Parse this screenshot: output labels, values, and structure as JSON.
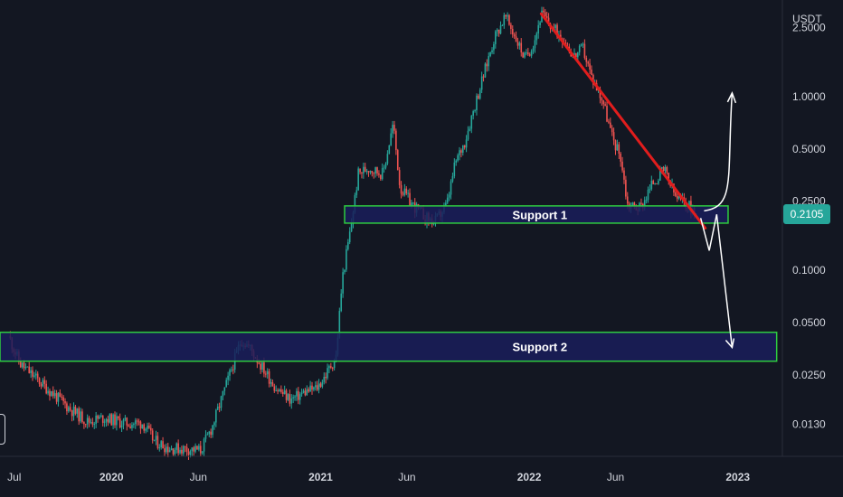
{
  "chart_data": {
    "type": "candlestick",
    "currency": "USDT",
    "y_scale": "log",
    "ylim": [
      0.0085,
      3.6
    ],
    "x_range": [
      "2019-06-20",
      "2023-03-20"
    ],
    "y_ticks": [
      {
        "value": 2.5,
        "label": "2.5000"
      },
      {
        "value": 1.0,
        "label": "1.0000"
      },
      {
        "value": 0.5,
        "label": "0.5000"
      },
      {
        "value": 0.25,
        "label": "0.2500"
      },
      {
        "value": 0.1,
        "label": "0.1000"
      },
      {
        "value": 0.05,
        "label": "0.0500"
      },
      {
        "value": 0.025,
        "label": "0.0250"
      },
      {
        "value": 0.013,
        "label": "0.0130"
      }
    ],
    "x_ticks": [
      {
        "date": "2019-07-15",
        "label": "Jul",
        "bold": false
      },
      {
        "date": "2020-01-01",
        "label": "2020",
        "bold": true
      },
      {
        "date": "2020-06-01",
        "label": "Jun",
        "bold": false
      },
      {
        "date": "2021-01-01",
        "label": "2021",
        "bold": true
      },
      {
        "date": "2021-06-01",
        "label": "Jun",
        "bold": false
      },
      {
        "date": "2022-01-01",
        "label": "2022",
        "bold": true
      },
      {
        "date": "2022-06-01",
        "label": "Jun",
        "bold": false
      },
      {
        "date": "2023-01-01",
        "label": "2023",
        "bold": true
      }
    ],
    "last_price": {
      "value": 0.2105,
      "label": "0.2105",
      "color": "#26a69a"
    },
    "colors": {
      "up": "#26a69a",
      "down": "#ef5350",
      "trendline": "#e11d1d",
      "zone_border": "#2ecc40",
      "zone_fill": "#1a1d5a",
      "arrow": "#ffffff",
      "background": "#131722"
    },
    "price_path": [
      [
        "2019-07-05",
        0.042
      ],
      [
        "2019-07-25",
        0.029
      ],
      [
        "2019-09-10",
        0.021
      ],
      [
        "2019-10-20",
        0.016
      ],
      [
        "2019-11-20",
        0.0135
      ],
      [
        "2019-12-20",
        0.0142
      ],
      [
        "2020-01-25",
        0.0132
      ],
      [
        "2020-02-25",
        0.0132
      ],
      [
        "2020-03-15",
        0.0105
      ],
      [
        "2020-04-10",
        0.0095
      ],
      [
        "2020-05-10",
        0.0094
      ],
      [
        "2020-06-05",
        0.0092
      ],
      [
        "2020-06-25",
        0.0125
      ],
      [
        "2020-07-20",
        0.022
      ],
      [
        "2020-08-15",
        0.04
      ],
      [
        "2020-08-30",
        0.036
      ],
      [
        "2020-09-20",
        0.028
      ],
      [
        "2020-10-15",
        0.021
      ],
      [
        "2020-11-10",
        0.018
      ],
      [
        "2020-12-05",
        0.02
      ],
      [
        "2020-12-25",
        0.021
      ],
      [
        "2021-01-10",
        0.025
      ],
      [
        "2021-01-28",
        0.032
      ],
      [
        "2021-02-08",
        0.09
      ],
      [
        "2021-02-22",
        0.17
      ],
      [
        "2021-03-08",
        0.36
      ],
      [
        "2021-03-25",
        0.39
      ],
      [
        "2021-04-20",
        0.36
      ],
      [
        "2021-05-08",
        0.7
      ],
      [
        "2021-05-20",
        0.3
      ],
      [
        "2021-06-10",
        0.24
      ],
      [
        "2021-07-05",
        0.2
      ],
      [
        "2021-07-20",
        0.19
      ],
      [
        "2021-08-10",
        0.24
      ],
      [
        "2021-08-25",
        0.42
      ],
      [
        "2021-09-10",
        0.55
      ],
      [
        "2021-09-28",
        0.9
      ],
      [
        "2021-10-15",
        1.4
      ],
      [
        "2021-11-01",
        2.2
      ],
      [
        "2021-11-20",
        2.9
      ],
      [
        "2021-12-05",
        2.3
      ],
      [
        "2021-12-25",
        1.65
      ],
      [
        "2022-01-10",
        2.1
      ],
      [
        "2022-01-22",
        3.0
      ],
      [
        "2022-02-10",
        2.5
      ],
      [
        "2022-03-01",
        2.2
      ],
      [
        "2022-03-20",
        1.7
      ],
      [
        "2022-04-05",
        1.9
      ],
      [
        "2022-04-20",
        1.3
      ],
      [
        "2022-05-10",
        0.95
      ],
      [
        "2022-05-25",
        0.6
      ],
      [
        "2022-06-10",
        0.45
      ],
      [
        "2022-06-22",
        0.24
      ],
      [
        "2022-07-15",
        0.23
      ],
      [
        "2022-08-05",
        0.32
      ],
      [
        "2022-08-25",
        0.38
      ],
      [
        "2022-09-15",
        0.26
      ],
      [
        "2022-10-05",
        0.24
      ],
      [
        "2022-10-20",
        0.2105
      ]
    ],
    "resistance_trendline": {
      "start": {
        "date": "2022-01-22",
        "value": 3.0
      },
      "end": {
        "date": "2022-11-05",
        "value": 0.175
      }
    },
    "zones": [
      {
        "label": "Support 1",
        "x_start": "2021-02-12",
        "x_end": "2022-12-15",
        "price_top": 0.235,
        "price_bottom": 0.187
      },
      {
        "label": "Support 2",
        "x_start": "2019-06-20",
        "x_end": "2023-03-10",
        "price_top": 0.044,
        "price_bottom": 0.03
      }
    ],
    "scenario_up": {
      "start": {
        "date": "2022-11-03",
        "value": 0.22
      },
      "end": {
        "date": "2022-12-22",
        "value": 1.05
      }
    },
    "scenario_down": [
      {
        "date": "2022-10-28",
        "value": 0.2
      },
      {
        "date": "2022-11-12",
        "value": 0.13
      },
      {
        "date": "2022-11-25",
        "value": 0.21
      },
      {
        "date": "2022-12-22",
        "value": 0.036
      }
    ]
  }
}
